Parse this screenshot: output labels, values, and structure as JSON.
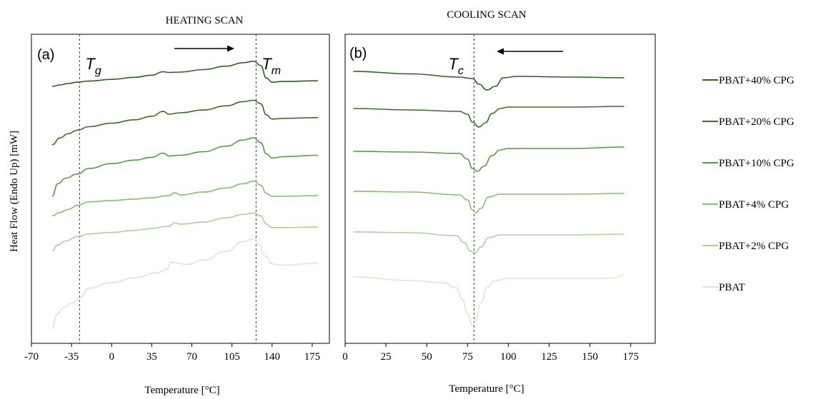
{
  "chart_data": [
    {
      "type": "line",
      "title": "HEATING SCAN",
      "panel_label": "(a)",
      "xlabel": "Temperature [°C]",
      "ylabel": "Heat Flow (Endo Up) [mW]",
      "xlim": [
        -70,
        190
      ],
      "xticks": [
        -70,
        -35,
        0,
        35,
        70,
        105,
        140,
        175
      ],
      "direction_arrow": "right",
      "markers": [
        {
          "symbol": "T",
          "subscript": "g",
          "x": -28
        },
        {
          "symbol": "T",
          "subscript": "m",
          "x": 126
        }
      ],
      "series": [
        {
          "name": "PBAT+40% CPG",
          "color": "#2f5f24",
          "points": [
            [
              -52,
              4.2
            ],
            [
              -45,
              4.0
            ],
            [
              -38,
              3.8
            ],
            [
              -30,
              3.6
            ],
            [
              -20,
              3.45
            ],
            [
              0,
              3.2
            ],
            [
              20,
              2.9
            ],
            [
              35,
              2.6
            ],
            [
              45,
              2.1
            ],
            [
              50,
              2.2
            ],
            [
              60,
              2.15
            ],
            [
              80,
              1.8
            ],
            [
              100,
              1.3
            ],
            [
              115,
              0.8
            ],
            [
              124,
              0.6
            ],
            [
              130,
              1.2
            ],
            [
              135,
              3.0
            ],
            [
              140,
              3.6
            ],
            [
              150,
              3.5
            ],
            [
              180,
              3.4
            ]
          ]
        },
        {
          "name": "PBAT+20% CPG",
          "color": "#3b6e2e",
          "points": [
            [
              -52,
              12.6
            ],
            [
              -45,
              11.6
            ],
            [
              -38,
              11.0
            ],
            [
              -30,
              10.5
            ],
            [
              -20,
              10.0
            ],
            [
              0,
              9.5
            ],
            [
              20,
              9.0
            ],
            [
              35,
              8.5
            ],
            [
              45,
              7.8
            ],
            [
              50,
              8.2
            ],
            [
              60,
              8.0
            ],
            [
              80,
              7.6
            ],
            [
              100,
              7.0
            ],
            [
              115,
              6.4
            ],
            [
              124,
              6.2
            ],
            [
              130,
              6.7
            ],
            [
              135,
              8.3
            ],
            [
              140,
              8.9
            ],
            [
              150,
              8.8
            ],
            [
              180,
              8.7
            ]
          ]
        },
        {
          "name": "PBAT+10% CPG",
          "color": "#5a9a46",
          "points": [
            [
              -52,
              20.0
            ],
            [
              -47,
              18.2
            ],
            [
              -40,
              17.4
            ],
            [
              -30,
              16.8
            ],
            [
              -20,
              16.0
            ],
            [
              0,
              15.3
            ],
            [
              20,
              14.8
            ],
            [
              35,
              14.4
            ],
            [
              45,
              13.8
            ],
            [
              50,
              14.2
            ],
            [
              60,
              14.1
            ],
            [
              80,
              13.6
            ],
            [
              100,
              12.8
            ],
            [
              115,
              11.9
            ],
            [
              124,
              11.6
            ],
            [
              130,
              12.3
            ],
            [
              135,
              13.9
            ],
            [
              140,
              14.5
            ],
            [
              150,
              14.3
            ],
            [
              180,
              14.1
            ]
          ]
        },
        {
          "name": "PBAT+4% CPG",
          "color": "#86bd73",
          "points": [
            [
              -52,
              22.8
            ],
            [
              -45,
              22.3
            ],
            [
              -38,
              21.9
            ],
            [
              -30,
              21.3
            ],
            [
              -20,
              20.8
            ],
            [
              0,
              20.6
            ],
            [
              20,
              20.4
            ],
            [
              35,
              20.2
            ],
            [
              50,
              19.9
            ],
            [
              55,
              19.5
            ],
            [
              60,
              19.8
            ],
            [
              80,
              19.4
            ],
            [
              100,
              18.8
            ],
            [
              115,
              18.2
            ],
            [
              124,
              17.8
            ],
            [
              130,
              18.4
            ],
            [
              135,
              19.6
            ],
            [
              140,
              20.0
            ],
            [
              150,
              20.0
            ],
            [
              180,
              19.9
            ]
          ]
        },
        {
          "name": "PBAT+2% CPG",
          "color": "#a9d39b",
          "points": [
            [
              -52,
              27.8
            ],
            [
              -47,
              27.0
            ],
            [
              -40,
              26.4
            ],
            [
              -30,
              25.8
            ],
            [
              -20,
              25.4
            ],
            [
              0,
              25.2
            ],
            [
              20,
              24.9
            ],
            [
              35,
              24.6
            ],
            [
              50,
              24.3
            ],
            [
              55,
              23.8
            ],
            [
              60,
              24.0
            ],
            [
              80,
              23.7
            ],
            [
              100,
              23.1
            ],
            [
              115,
              22.6
            ],
            [
              124,
              22.4
            ],
            [
              130,
              22.8
            ],
            [
              135,
              24.0
            ],
            [
              140,
              24.5
            ],
            [
              150,
              24.5
            ],
            [
              180,
              24.4
            ]
          ]
        },
        {
          "name": "PBAT",
          "color": "#dbe8cf",
          "points": [
            [
              -52,
              39.0
            ],
            [
              -48,
              37.0
            ],
            [
              -42,
              36.0
            ],
            [
              -35,
              35.4
            ],
            [
              -28,
              34.6
            ],
            [
              -20,
              33.2
            ],
            [
              0,
              32.4
            ],
            [
              20,
              31.7
            ],
            [
              40,
              31.0
            ],
            [
              48,
              30.5
            ],
            [
              52,
              29.5
            ],
            [
              58,
              29.6
            ],
            [
              65,
              29.8
            ],
            [
              80,
              29.2
            ],
            [
              100,
              27.9
            ],
            [
              115,
              26.5
            ],
            [
              124,
              26.1
            ],
            [
              128,
              26.8
            ],
            [
              134,
              28.6
            ],
            [
              140,
              29.7
            ],
            [
              150,
              29.9
            ],
            [
              180,
              29.6
            ]
          ]
        }
      ]
    },
    {
      "type": "line",
      "title": "COOLING SCAN",
      "panel_label": "(b)",
      "xlabel": "Temperature [°C]",
      "xlim": [
        0,
        190
      ],
      "xticks": [
        0,
        25,
        50,
        75,
        100,
        125,
        150,
        175
      ],
      "direction_arrow": "left",
      "markers": [
        {
          "symbol": "T",
          "subscript": "c",
          "x": 79
        }
      ],
      "series": [
        {
          "name": "PBAT+40% CPG",
          "color": "#2f5f24",
          "points": [
            [
              5,
              0.0
            ],
            [
              40,
              0.35
            ],
            [
              70,
              0.8
            ],
            [
              78,
              1.0
            ],
            [
              82,
              1.8
            ],
            [
              87,
              2.6
            ],
            [
              92,
              2.1
            ],
            [
              97,
              0.9
            ],
            [
              105,
              0.7
            ],
            [
              140,
              0.8
            ],
            [
              171,
              0.9
            ]
          ]
        },
        {
          "name": "PBAT+20% CPG",
          "color": "#3b6e2e",
          "points": [
            [
              5,
              5.2
            ],
            [
              40,
              5.4
            ],
            [
              70,
              5.6
            ],
            [
              75,
              6.0
            ],
            [
              78,
              7.1
            ],
            [
              82,
              7.8
            ],
            [
              86,
              7.2
            ],
            [
              90,
              5.9
            ],
            [
              95,
              5.2
            ],
            [
              100,
              5.0
            ],
            [
              140,
              5.0
            ],
            [
              171,
              4.9
            ]
          ]
        },
        {
          "name": "PBAT+10% CPG",
          "color": "#5a9a46",
          "points": [
            [
              5,
              11.2
            ],
            [
              40,
              11.3
            ],
            [
              70,
              11.5
            ],
            [
              75,
              12.3
            ],
            [
              78,
              13.6
            ],
            [
              81,
              14.0
            ],
            [
              85,
              13.3
            ],
            [
              90,
              11.8
            ],
            [
              95,
              11.0
            ],
            [
              100,
              10.8
            ],
            [
              140,
              10.8
            ],
            [
              171,
              10.6
            ]
          ]
        },
        {
          "name": "PBAT+4% CPG",
          "color": "#86bd73",
          "points": [
            [
              5,
              16.8
            ],
            [
              40,
              16.9
            ],
            [
              70,
              17.3
            ],
            [
              75,
              18.0
            ],
            [
              78,
              19.4
            ],
            [
              80,
              19.8
            ],
            [
              83,
              19.2
            ],
            [
              88,
              17.6
            ],
            [
              95,
              17.2
            ],
            [
              140,
              17.2
            ],
            [
              171,
              17.1
            ]
          ]
        },
        {
          "name": "PBAT+2% CPG",
          "color": "#a9d39b",
          "points": [
            [
              5,
              22.5
            ],
            [
              40,
              22.6
            ],
            [
              68,
              23.0
            ],
            [
              73,
              24.0
            ],
            [
              77,
              25.2
            ],
            [
              80,
              25.4
            ],
            [
              83,
              24.6
            ],
            [
              88,
              23.3
            ],
            [
              95,
              22.9
            ],
            [
              140,
              22.9
            ],
            [
              171,
              22.8
            ]
          ]
        },
        {
          "name": "PBAT",
          "color": "#dbe8cf",
          "points": [
            [
              5,
              28.8
            ],
            [
              40,
              29.3
            ],
            [
              60,
              29.6
            ],
            [
              68,
              30.3
            ],
            [
              72,
              32.0
            ],
            [
              75,
              34.0
            ],
            [
              78,
              35.6
            ],
            [
              80,
              35.0
            ],
            [
              83,
              32.5
            ],
            [
              87,
              30.3
            ],
            [
              92,
              29.3
            ],
            [
              100,
              29.0
            ],
            [
              160,
              29.0
            ],
            [
              166,
              28.9
            ],
            [
              171,
              28.5
            ]
          ]
        }
      ]
    }
  ],
  "legend": {
    "placement": "right",
    "entries": [
      {
        "label": "PBAT+40% CPG",
        "color": "#2f5f24"
      },
      {
        "label": "PBAT+20% CPG",
        "color": "#3b6e2e"
      },
      {
        "label": "PBAT+10% CPG",
        "color": "#5a9a46"
      },
      {
        "label": "PBAT+4% CPG",
        "color": "#86bd73"
      },
      {
        "label": "PBAT+2% CPG",
        "color": "#a9d39b"
      },
      {
        "label": "PBAT",
        "color": "#dbe8cf"
      }
    ]
  }
}
